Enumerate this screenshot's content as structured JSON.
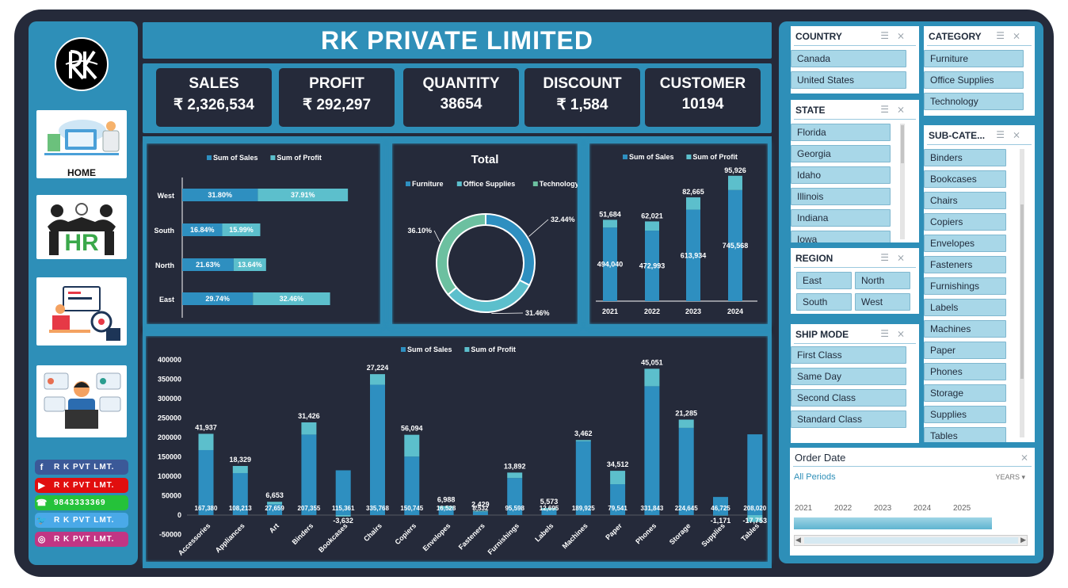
{
  "nav": {
    "home_label": "HOME",
    "socials": [
      {
        "icon": "f",
        "label": "R K  PVT  LMT.",
        "color": "#3b5998"
      },
      {
        "icon": "▶",
        "label": "R K  PVT  LMT.",
        "color": "#e10e0e"
      },
      {
        "icon": "☎",
        "label": "9843333369",
        "color": "#25c23a"
      },
      {
        "icon": "🐦",
        "label": "R K  PVT  LMT.",
        "color": "#4aa9e8"
      },
      {
        "icon": "◎",
        "label": "R K  PVT  LMT.",
        "color": "#c13584"
      }
    ]
  },
  "header": {
    "title": "RK PRIVATE LIMITED"
  },
  "kpis": [
    {
      "label": "SALES",
      "value": "₹ 2,326,534"
    },
    {
      "label": "PROFIT",
      "value": "₹ 292,297"
    },
    {
      "label": "QUANTITY",
      "value": "38654"
    },
    {
      "label": "DISCOUNT",
      "value": "₹ 1,584"
    },
    {
      "label": "CUSTOMER",
      "value": "10194"
    }
  ],
  "colors": {
    "sales": "#2e8fc0",
    "profit": "#5cbfcc",
    "donut_furniture": "#2e8fc0",
    "donut_office": "#5cbfcc",
    "donut_tech": "#6cc0a0"
  },
  "chart_data": [
    {
      "type": "bar",
      "orientation": "horizontal-stacked",
      "legend": [
        "Sum of Sales",
        "Sum of Profit"
      ],
      "categories": [
        "West",
        "South",
        "North",
        "East"
      ],
      "series": [
        {
          "name": "Sum of Sales",
          "values": [
            31.8,
            16.84,
            21.63,
            29.74
          ],
          "labels": [
            "31.80%",
            "16.84%",
            "21.63%",
            "29.74%"
          ]
        },
        {
          "name": "Sum of Profit",
          "values": [
            37.91,
            15.99,
            13.64,
            32.46
          ],
          "labels": [
            "37.91%",
            "15.99%",
            "13.64%",
            "32.46%"
          ]
        }
      ]
    },
    {
      "type": "pie",
      "variant": "donut",
      "title": "Total",
      "legend": [
        "Furniture",
        "Office Supplies",
        "Technology"
      ],
      "values": [
        32.44,
        31.46,
        36.1
      ],
      "labels": [
        "32.44%",
        "31.46%",
        "36.10%"
      ]
    },
    {
      "type": "bar",
      "orientation": "vertical-stacked",
      "legend": [
        "Sum of Sales",
        "Sum of Profit"
      ],
      "categories": [
        "2021",
        "2022",
        "2023",
        "2024"
      ],
      "series": [
        {
          "name": "Sum of Sales",
          "values": [
            494040,
            472993,
            613934,
            745568
          ],
          "labels": [
            "494,040",
            "472,993",
            "613,934",
            "745,568"
          ]
        },
        {
          "name": "Sum of Profit",
          "values": [
            51684,
            62021,
            82665,
            95926
          ],
          "labels": [
            "51,684",
            "62,021",
            "82,665",
            "95,926"
          ]
        }
      ]
    },
    {
      "type": "bar",
      "orientation": "vertical-stacked",
      "legend": [
        "Sum of Sales",
        "Sum of Profit"
      ],
      "yticks": [
        "400000",
        "350000",
        "300000",
        "250000",
        "200000",
        "150000",
        "100000",
        "50000",
        "0",
        "-50000"
      ],
      "ylim": [
        -50000,
        400000
      ],
      "categories": [
        "Accessories",
        "Appliances",
        "Art",
        "Binders",
        "Bookcases",
        "Chairs",
        "Copiers",
        "Envelopes",
        "Fasteners",
        "Furnishings",
        "Labels",
        "Machines",
        "Paper",
        "Phones",
        "Storage",
        "Supplies",
        "Tables"
      ],
      "series": [
        {
          "name": "Sum of Sales",
          "values": [
            167380,
            108213,
            27659,
            207355,
            115361,
            335768,
            150745,
            16528,
            8532,
            95598,
            12695,
            189925,
            79541,
            331843,
            224645,
            46725,
            208020
          ],
          "labels": [
            "167,380",
            "108,213",
            "27,659",
            "207,355",
            "115,361",
            "335,768",
            "150,745",
            "16,528",
            "8,532",
            "95,598",
            "12,695",
            "189,925",
            "79,541",
            "331,843",
            "224,645",
            "46,725",
            "208,020"
          ]
        },
        {
          "name": "Sum of Profit",
          "values": [
            41937,
            18329,
            6653,
            31426,
            -3632,
            27224,
            56094,
            6988,
            2429,
            13892,
            5573,
            3462,
            34512,
            45051,
            21285,
            -1171,
            -17753
          ],
          "labels": [
            "41,937",
            "18,329",
            "6,653",
            "31,426",
            "-3,632",
            "27,224",
            "56,094",
            "6,988",
            "2,429",
            "13,892",
            "5,573",
            "3,462",
            "34,512",
            "45,051",
            "21,285",
            "-1,171",
            "-17,753"
          ]
        }
      ]
    }
  ],
  "slicers": {
    "country": {
      "title": "COUNTRY",
      "items": [
        "Canada",
        "United States"
      ]
    },
    "category": {
      "title": "CATEGORY",
      "items": [
        "Furniture",
        "Office Supplies",
        "Technology"
      ]
    },
    "state": {
      "title": "STATE",
      "items": [
        "Florida",
        "Georgia",
        "Idaho",
        "Illinois",
        "Indiana",
        "Iowa"
      ]
    },
    "subcategory": {
      "title": "SUB-CATE...",
      "items": [
        "Binders",
        "Bookcases",
        "Chairs",
        "Copiers",
        "Envelopes",
        "Fasteners",
        "Furnishings",
        "Labels",
        "Machines",
        "Paper",
        "Phones",
        "Storage",
        "Supplies",
        "Tables"
      ]
    },
    "region": {
      "title": "REGION",
      "items": [
        "East",
        "North",
        "South",
        "West"
      ]
    },
    "shipmode": {
      "title": "SHIP MODE",
      "items": [
        "First Class",
        "Same Day",
        "Second Class",
        "Standard Class"
      ]
    }
  },
  "timeline": {
    "title": "Order Date",
    "period": "All Periods",
    "unit": "YEARS",
    "years": [
      "2021",
      "2022",
      "2023",
      "2024",
      "2025"
    ]
  }
}
